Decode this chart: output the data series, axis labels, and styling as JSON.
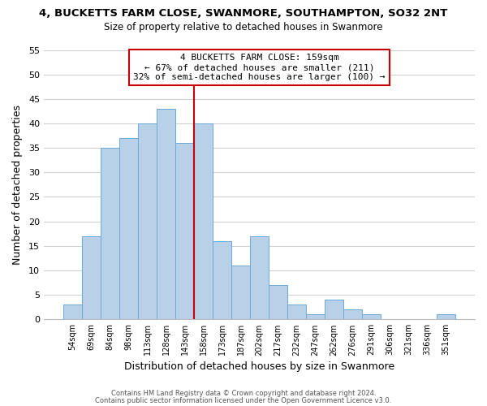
{
  "title": "4, BUCKETTS FARM CLOSE, SWANMORE, SOUTHAMPTON, SO32 2NT",
  "subtitle": "Size of property relative to detached houses in Swanmore",
  "xlabel": "Distribution of detached houses by size in Swanmore",
  "ylabel": "Number of detached properties",
  "bar_labels": [
    "54sqm",
    "69sqm",
    "84sqm",
    "98sqm",
    "113sqm",
    "128sqm",
    "143sqm",
    "158sqm",
    "173sqm",
    "187sqm",
    "202sqm",
    "217sqm",
    "232sqm",
    "247sqm",
    "262sqm",
    "276sqm",
    "291sqm",
    "306sqm",
    "321sqm",
    "336sqm",
    "351sqm"
  ],
  "bar_heights": [
    3,
    17,
    35,
    37,
    40,
    43,
    36,
    40,
    16,
    11,
    17,
    7,
    3,
    1,
    4,
    2,
    1,
    0,
    0,
    0,
    1
  ],
  "bar_color": "#b8d0e8",
  "bar_edge_color": "#6aaad4",
  "vline_x_idx": 7,
  "vline_color": "#cc0000",
  "ylim": [
    0,
    55
  ],
  "yticks": [
    0,
    5,
    10,
    15,
    20,
    25,
    30,
    35,
    40,
    45,
    50,
    55
  ],
  "annotation_line1": "4 BUCKETTS FARM CLOSE: 159sqm",
  "annotation_line2": "← 67% of detached houses are smaller (211)",
  "annotation_line3": "32% of semi-detached houses are larger (100) →",
  "annotation_box_color": "#ffffff",
  "annotation_box_edge": "#cc0000",
  "footer_line1": "Contains HM Land Registry data © Crown copyright and database right 2024.",
  "footer_line2": "Contains public sector information licensed under the Open Government Licence v3.0.",
  "background_color": "#ffffff",
  "grid_color": "#d0d0d0"
}
